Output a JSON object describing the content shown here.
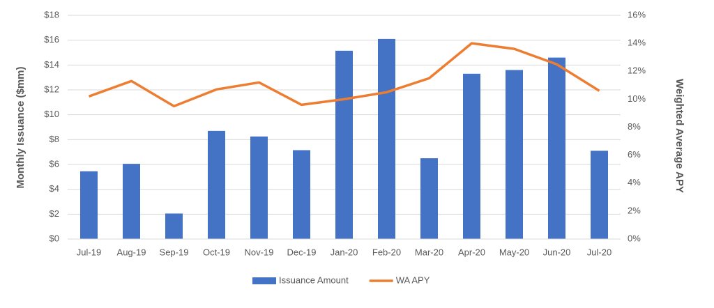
{
  "chart_data": {
    "type": "bar-line",
    "ylabel": "Monthly Issuance ($mm)",
    "y2label": "Weighted Average APY",
    "categories": [
      "Jul-19",
      "Aug-19",
      "Sep-19",
      "Oct-19",
      "Nov-19",
      "Dec-19",
      "Jan-20",
      "Feb-20",
      "Mar-20",
      "Apr-20",
      "May-20",
      "Jun-20",
      "Jul-20"
    ],
    "series": [
      {
        "name": "Issuance Amount",
        "color": "#4472c4",
        "kind": "bar",
        "axis": "y",
        "values": [
          5.45,
          6.05,
          2.05,
          8.7,
          8.25,
          7.15,
          15.15,
          16.1,
          6.5,
          13.3,
          13.6,
          14.6,
          7.1
        ]
      },
      {
        "name": "WA APY",
        "color": "#ed7d31",
        "kind": "line",
        "axis": "y2",
        "values": [
          10.2,
          11.3,
          9.5,
          10.7,
          11.2,
          9.6,
          10.0,
          10.5,
          11.5,
          14.0,
          13.6,
          12.5,
          10.6
        ]
      }
    ],
    "ylim": [
      0,
      18
    ],
    "yticks": [
      {
        "value": 0,
        "label": "$0"
      },
      {
        "value": 2,
        "label": "$2"
      },
      {
        "value": 4,
        "label": "$4"
      },
      {
        "value": 6,
        "label": "$6"
      },
      {
        "value": 8,
        "label": "$8"
      },
      {
        "value": 10,
        "label": "$10"
      },
      {
        "value": 12,
        "label": "$12"
      },
      {
        "value": 14,
        "label": "$14"
      },
      {
        "value": 16,
        "label": "$16"
      },
      {
        "value": 18,
        "label": "$18"
      }
    ],
    "y2lim": [
      0,
      16
    ],
    "y2ticks": [
      {
        "value": 0,
        "label": "0%"
      },
      {
        "value": 2,
        "label": "2%"
      },
      {
        "value": 4,
        "label": "4%"
      },
      {
        "value": 6,
        "label": "6%"
      },
      {
        "value": 8,
        "label": "8%"
      },
      {
        "value": 10,
        "label": "10%"
      },
      {
        "value": 12,
        "label": "12%"
      },
      {
        "value": 14,
        "label": "14%"
      },
      {
        "value": 16,
        "label": "16%"
      }
    ],
    "grid": true,
    "legend": "bottom"
  }
}
